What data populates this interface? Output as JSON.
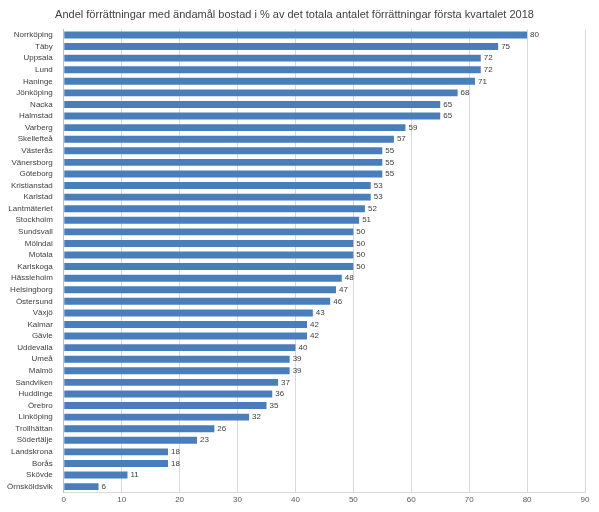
{
  "chart_data": {
    "type": "bar",
    "orientation": "horizontal",
    "title": "Andel förrättningar med ändamål bostad i % av det totala antalet förrättningar första kvartalet 2018",
    "categories": [
      "Norrköping",
      "Täby",
      "Uppsala",
      "Lund",
      "Haninge",
      "Jönköping",
      "Nacka",
      "Halmstad",
      "Varberg",
      "Skellefteå",
      "Västerås",
      "Vänersborg",
      "Göteborg",
      "Kristianstad",
      "Karlstad",
      "Lantmäteriet",
      "Stockholm",
      "Sundsvall",
      "Mölndal",
      "Motala",
      "Karlskoga",
      "Hässleholm",
      "Helsingborg",
      "Östersund",
      "Växjö",
      "Kalmar",
      "Gävle",
      "Uddevalla",
      "Umeå",
      "Malmö",
      "Sandviken",
      "Huddinge",
      "Örebro",
      "Linköping",
      "Trollhättan",
      "Södertälje",
      "Landskrona",
      "Borås",
      "Skövde",
      "Örnsköldsvik"
    ],
    "values": [
      80,
      75,
      72,
      72,
      71,
      68,
      65,
      65,
      59,
      57,
      55,
      55,
      55,
      53,
      53,
      52,
      51,
      50,
      50,
      50,
      50,
      48,
      47,
      46,
      43,
      42,
      42,
      40,
      39,
      39,
      37,
      36,
      35,
      32,
      26,
      23,
      18,
      18,
      11,
      6
    ],
    "color": "#4a7ebb",
    "xlim": [
      0,
      90
    ],
    "xticks": [
      0,
      10,
      20,
      30,
      40,
      50,
      60,
      70,
      80,
      90
    ],
    "grid": true,
    "data_labels": true
  }
}
